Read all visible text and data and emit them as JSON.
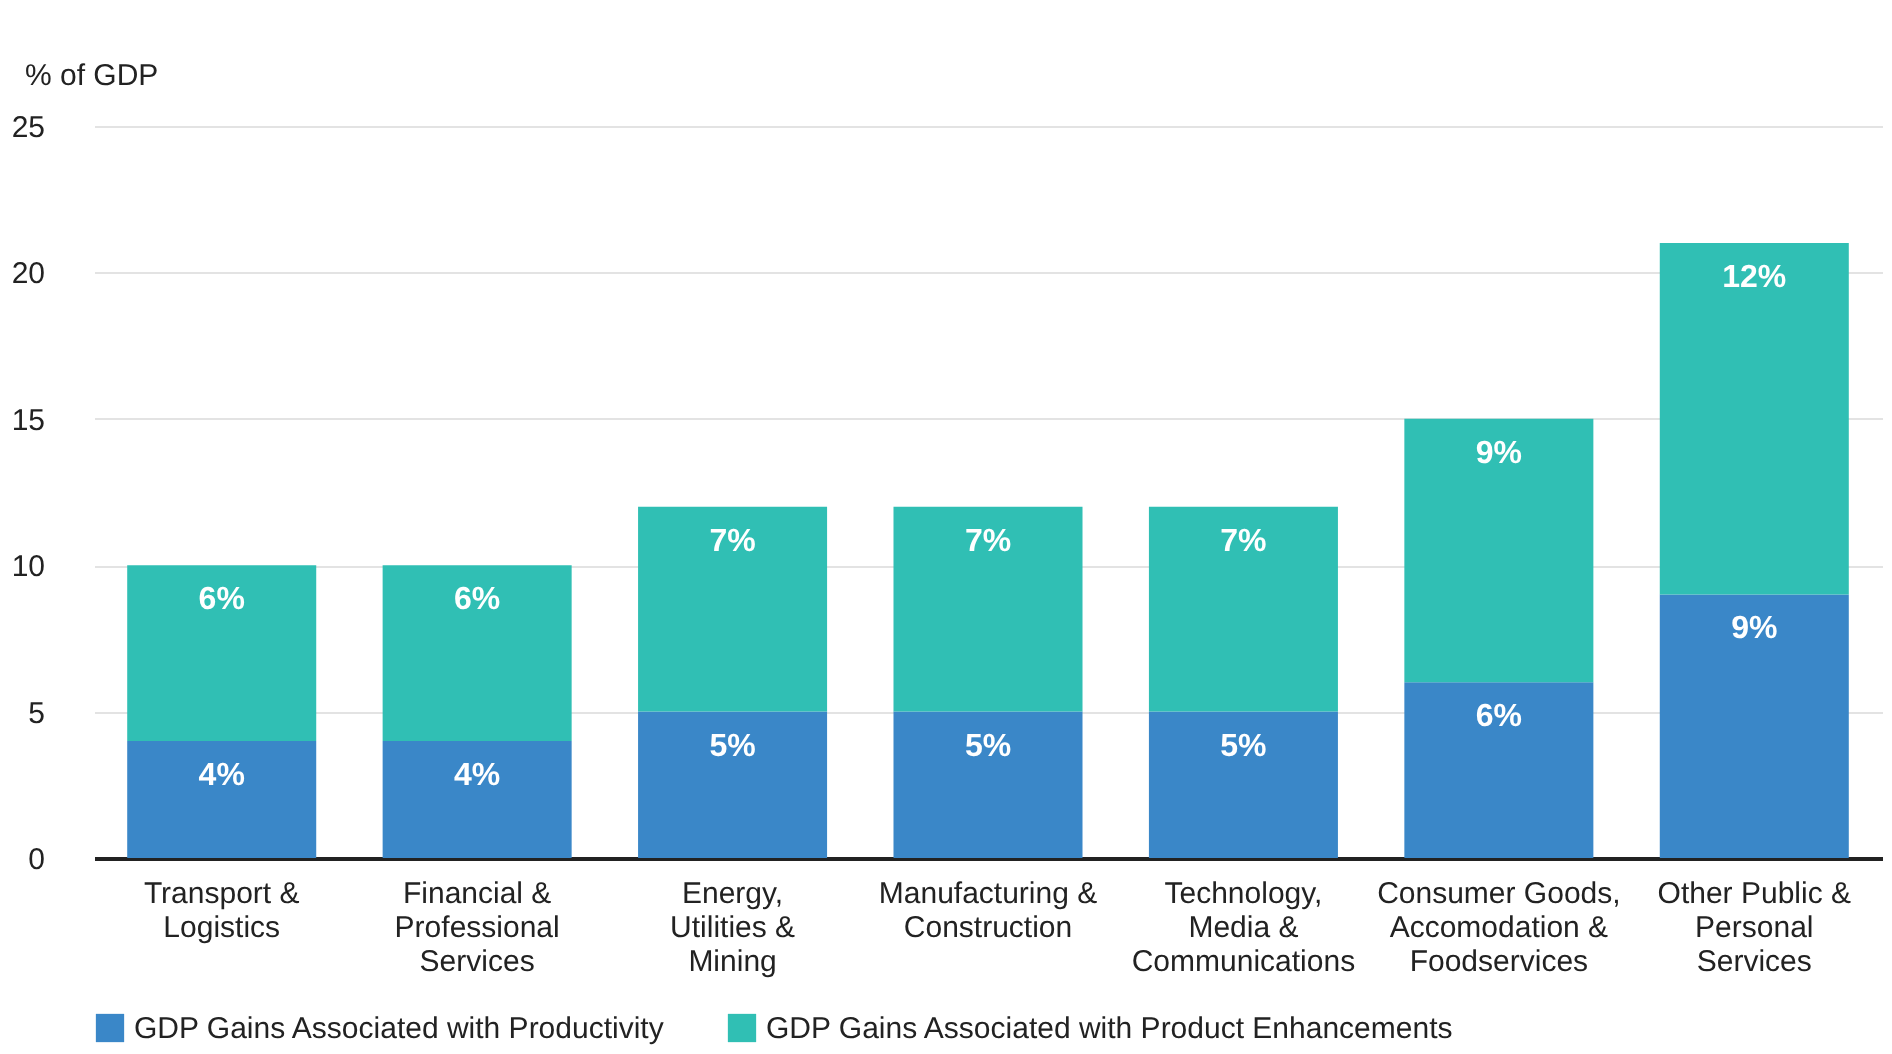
{
  "chart_data": {
    "type": "bar",
    "stacked": true,
    "ylabel": "% of GDP",
    "categories": [
      "Transport & Logistics",
      "Financial & Professional Services",
      "Energy, Utilities & Mining",
      "Manufacturing & Construction",
      "Technology, Media & Communications",
      "Consumer Goods, Accomodation & Foodservices",
      "Other Public & Personal Services"
    ],
    "series": [
      {
        "name": "GDP Gains Associated with Productivity",
        "color": "#3a87c8",
        "values": [
          4,
          4,
          5,
          5,
          5,
          6,
          9
        ],
        "value_labels": [
          "4%",
          "4%",
          "5%",
          "5%",
          "5%",
          "6%",
          "9%"
        ]
      },
      {
        "name": "GDP Gains Associated with Product Enhancements",
        "color": "#30bfb4",
        "values": [
          6,
          6,
          7,
          7,
          7,
          9,
          12
        ],
        "value_labels": [
          "6%",
          "6%",
          "7%",
          "7%",
          "7%",
          "9%",
          "12%"
        ]
      }
    ],
    "ylim": [
      0,
      25
    ],
    "yticks": [
      0,
      5,
      10,
      15,
      20,
      25
    ],
    "grid": "y",
    "legend": "bottom left"
  }
}
